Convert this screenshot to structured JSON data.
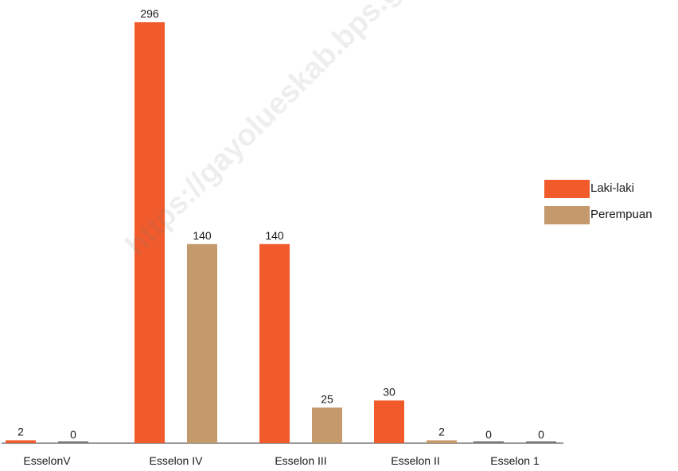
{
  "chart_data": {
    "type": "bar",
    "categories": [
      "EsselonV",
      "Esselon IV",
      "Esselon III",
      "Esselon II",
      "Esselon 1"
    ],
    "series": [
      {
        "name": "Laki-laki",
        "values": [
          2,
          296,
          140,
          30,
          0
        ],
        "color": "#f15a2b"
      },
      {
        "name": "Perempuan",
        "values": [
          0,
          140,
          25,
          2,
          0
        ],
        "color": "#c49a6c"
      }
    ],
    "ylim": [
      0,
      296
    ],
    "grid": false,
    "legend_position": "right"
  },
  "watermark": "https://gayolueskab.bps.go.id"
}
